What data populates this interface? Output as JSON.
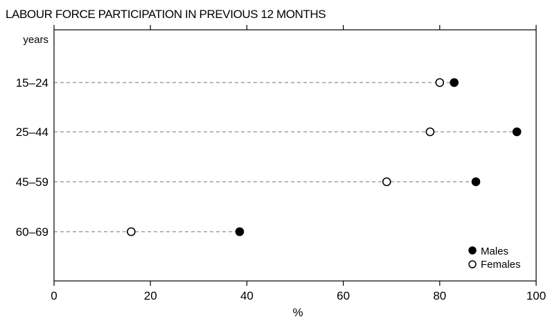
{
  "chart_data": {
    "type": "scatter",
    "title": "LABOUR FORCE PARTICIPATION IN PREVIOUS 12 MONTHS",
    "ylabel": "years",
    "xlabel": "%",
    "xlim": [
      0,
      100
    ],
    "xticks": [
      "0",
      "20",
      "40",
      "60",
      "80",
      "100"
    ],
    "categories": [
      "15–24",
      "25–44",
      "45–59",
      "60–69"
    ],
    "series": [
      {
        "name": "Males",
        "marker": "filled-circle",
        "values": [
          83,
          96,
          87.5,
          38.5
        ]
      },
      {
        "name": "Females",
        "marker": "open-circle",
        "values": [
          80,
          78,
          69,
          16
        ]
      }
    ],
    "legend_position": "bottom-right",
    "dashed_guides": true,
    "colors": {
      "marker": "#000000",
      "guide": "#8c8c8c"
    }
  }
}
